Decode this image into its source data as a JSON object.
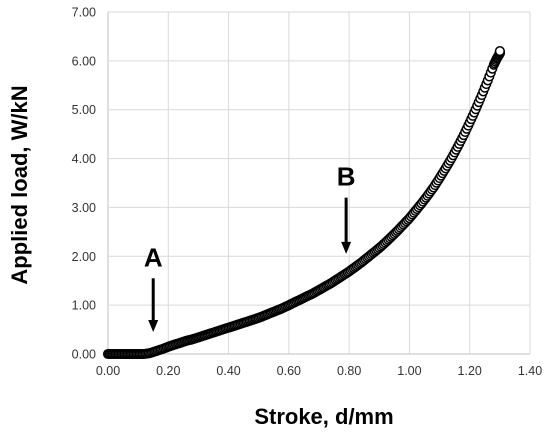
{
  "chart_data": {
    "type": "scatter",
    "title": "",
    "xlabel": "Stroke, d/mm",
    "ylabel": "Applied load, W/kN",
    "xlim": [
      0,
      1.4
    ],
    "ylim": [
      0,
      7
    ],
    "x_ticks": [
      "0.00",
      "0.20",
      "0.40",
      "0.60",
      "0.80",
      "1.00",
      "1.20",
      "1.40"
    ],
    "y_ticks": [
      "0.00",
      "1.00",
      "2.00",
      "3.00",
      "4.00",
      "5.00",
      "6.00",
      "7.00"
    ],
    "grid": true,
    "legend": "none",
    "marker": "open-circle",
    "marker_color": "#000000",
    "series": [
      {
        "x": [
          0.0,
          0.02,
          0.04,
          0.06,
          0.08,
          0.1,
          0.12,
          0.14,
          0.16,
          0.18,
          0.2,
          0.22,
          0.24,
          0.26,
          0.28,
          0.3,
          0.32,
          0.34,
          0.36,
          0.38,
          0.4,
          0.42,
          0.44,
          0.46,
          0.48,
          0.5,
          0.52,
          0.54,
          0.56,
          0.58,
          0.6,
          0.62,
          0.64,
          0.66,
          0.68,
          0.7,
          0.72,
          0.74,
          0.76,
          0.78,
          0.8,
          0.82,
          0.84,
          0.86,
          0.88,
          0.9,
          0.92,
          0.94,
          0.96,
          0.98,
          1.0,
          1.02,
          1.04,
          1.06,
          1.08,
          1.1,
          1.12,
          1.14,
          1.16,
          1.18,
          1.2,
          1.22,
          1.24,
          1.26,
          1.28,
          1.29,
          1.3,
          1.3
        ],
        "y": [
          0.0,
          0.0,
          0.0,
          0.0,
          0.0,
          0.0,
          0.0,
          0.02,
          0.06,
          0.1,
          0.15,
          0.19,
          0.23,
          0.27,
          0.3,
          0.34,
          0.38,
          0.42,
          0.46,
          0.5,
          0.54,
          0.58,
          0.62,
          0.66,
          0.7,
          0.74,
          0.79,
          0.84,
          0.89,
          0.94,
          1.0,
          1.06,
          1.12,
          1.18,
          1.24,
          1.31,
          1.38,
          1.45,
          1.53,
          1.61,
          1.69,
          1.78,
          1.87,
          1.97,
          2.07,
          2.17,
          2.28,
          2.4,
          2.52,
          2.65,
          2.78,
          2.93,
          3.08,
          3.24,
          3.41,
          3.6,
          3.8,
          4.01,
          4.24,
          4.48,
          4.74,
          5.01,
          5.3,
          5.6,
          5.92,
          6.05,
          6.15,
          6.2
        ]
      }
    ],
    "annotations": [
      {
        "label": "A",
        "x": 0.15,
        "arrow_top_y": 1.55,
        "arrow_tip_y": 0.45
      },
      {
        "label": "B",
        "x": 0.79,
        "arrow_top_y": 3.2,
        "arrow_tip_y": 2.05
      }
    ]
  }
}
